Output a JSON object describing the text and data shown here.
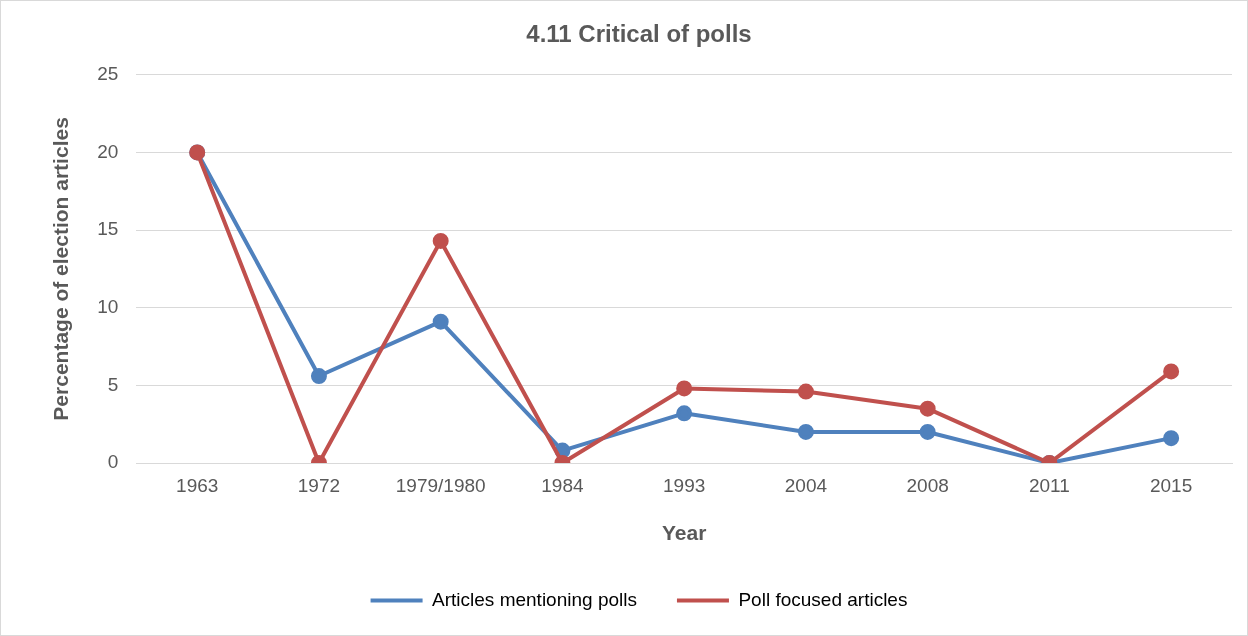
{
  "chart_data": {
    "type": "line",
    "title": "4.11 Critical of polls",
    "xlabel": "Year",
    "ylabel": "Percentage of election articles",
    "categories": [
      "1963",
      "1972",
      "1979/1980",
      "1984",
      "1993",
      "2004",
      "2008",
      "2011",
      "2015"
    ],
    "series": [
      {
        "name": "Articles mentioning polls",
        "color": "#4f81bd",
        "values": [
          20,
          5.6,
          9.1,
          0.8,
          3.2,
          2.0,
          2.0,
          0,
          1.6
        ]
      },
      {
        "name": "Poll focused articles",
        "color": "#c0504d",
        "values": [
          20,
          0,
          14.3,
          0,
          4.8,
          4.6,
          3.5,
          0,
          5.9
        ]
      }
    ],
    "ylim": [
      0,
      25
    ],
    "yticks": [
      0,
      5,
      10,
      15,
      20,
      25
    ],
    "grid": "y",
    "legend": "bottom",
    "marker": "circle",
    "line_style": "solid"
  }
}
